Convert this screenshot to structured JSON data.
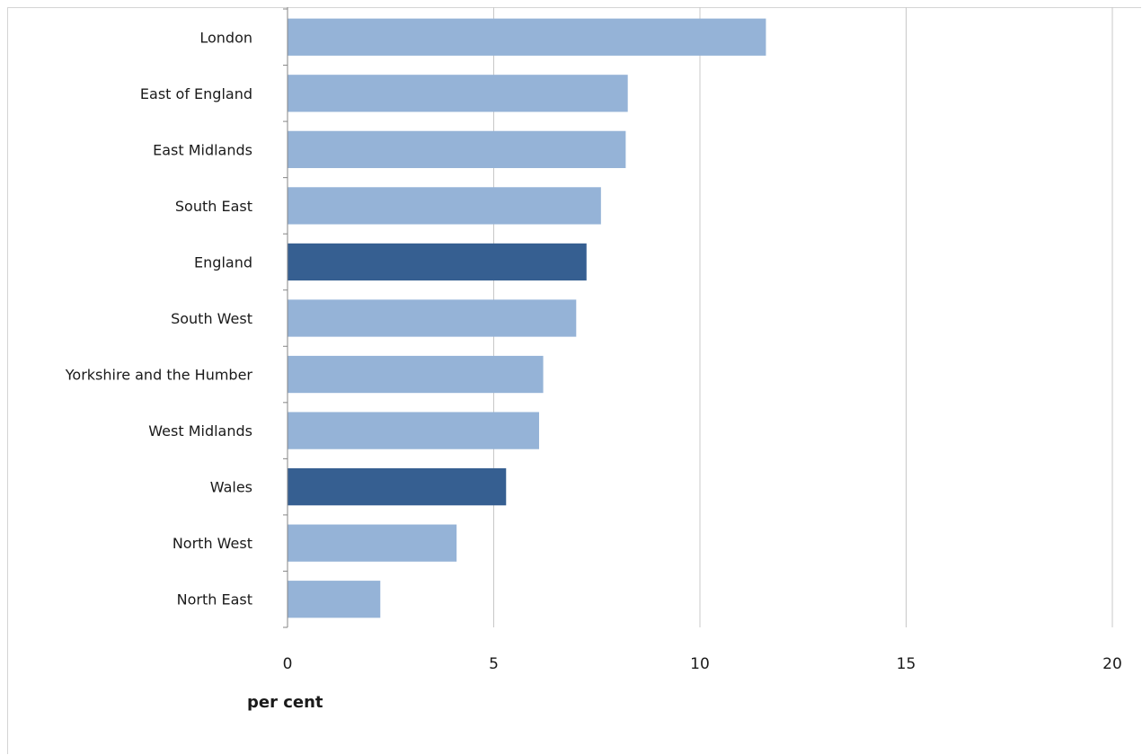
{
  "chart_data": {
    "type": "bar",
    "orientation": "horizontal",
    "categories": [
      "London",
      "East of England",
      "East Midlands",
      "South East",
      "England",
      "South West",
      "Yorkshire and the Humber",
      "West Midlands",
      "Wales",
      "North West",
      "North East"
    ],
    "values": [
      11.6,
      8.25,
      8.2,
      7.6,
      7.25,
      7.0,
      6.2,
      6.1,
      5.3,
      4.1,
      2.25
    ],
    "highlighted": [
      "England",
      "Wales"
    ],
    "xlabel": "per cent",
    "ylabel": "",
    "xlim": [
      0,
      20
    ],
    "xticks": [
      0,
      5,
      10,
      15,
      20
    ],
    "grid": "vertical",
    "legend": "none",
    "colors": {
      "bar": "#95b3d7",
      "highlight": "#365f91",
      "grid": "#c8c8c8",
      "axis": "#868686"
    }
  }
}
